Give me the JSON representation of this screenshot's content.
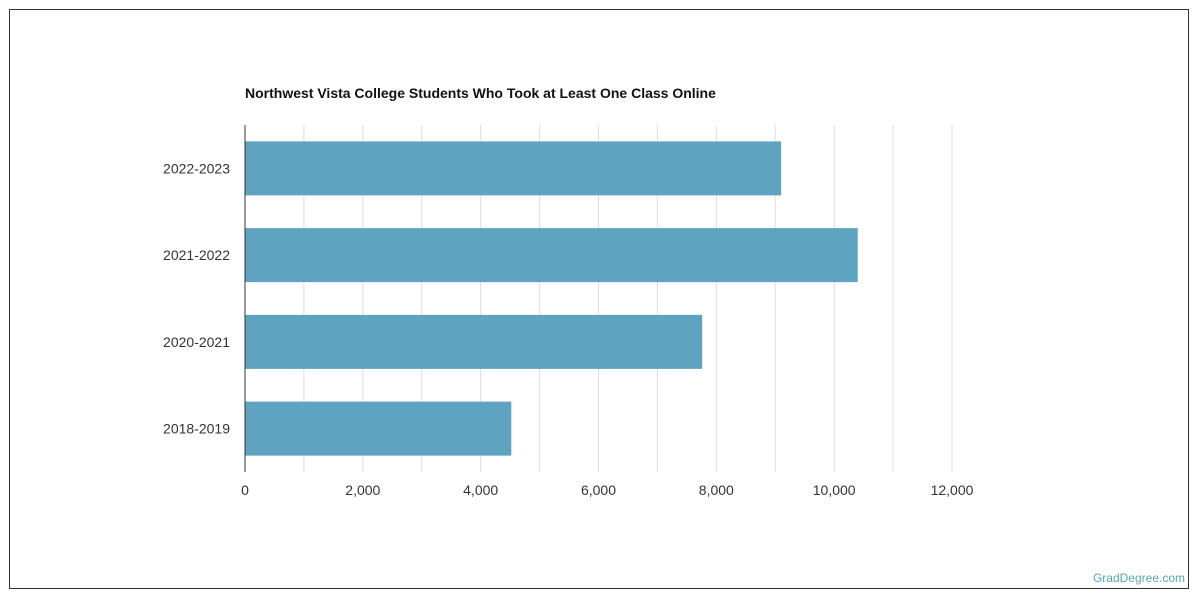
{
  "chart_data": {
    "type": "bar",
    "orientation": "horizontal",
    "title": "Northwest Vista College Students Who Took at Least One Class Online",
    "categories": [
      "2022-2023",
      "2021-2022",
      "2020-2021",
      "2018-2019"
    ],
    "values": [
      9100,
      10400,
      7760,
      4520
    ],
    "xlim": [
      0,
      12000
    ],
    "x_ticks": [
      0,
      2000,
      4000,
      6000,
      8000,
      10000,
      12000
    ],
    "x_tick_labels": [
      "0",
      "2,000",
      "4,000",
      "6,000",
      "8,000",
      "10,000",
      "12,000"
    ],
    "xlabel": "",
    "ylabel": "",
    "grid": true,
    "bar_color": "#5ea3bf"
  },
  "footer": {
    "watermark": "GradDegree.com"
  }
}
